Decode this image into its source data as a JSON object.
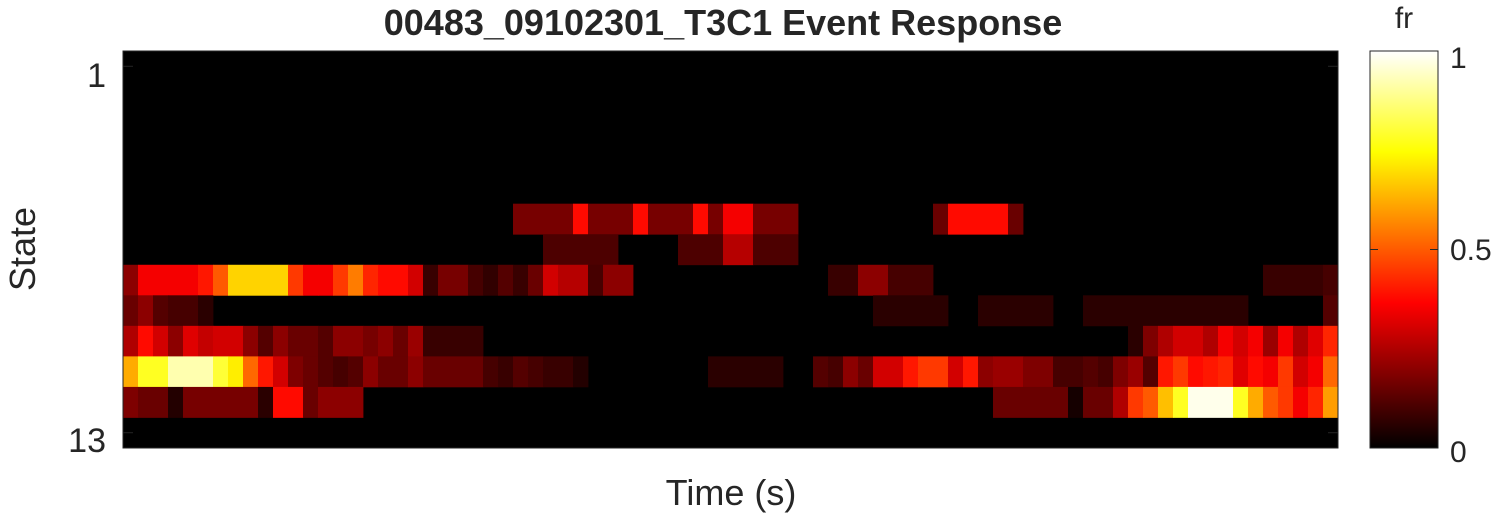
{
  "chart_data": {
    "type": "heatmap",
    "title": "00483_09102301_T3C1 Event Response",
    "xlabel": "Time (s)",
    "ylabel": "State",
    "ytick_labels": [
      "1",
      "13"
    ],
    "yticks": [
      1,
      13
    ],
    "n_rows": 13,
    "n_cols": 81,
    "colormap": "hot",
    "colorbar": {
      "label": "fr",
      "range": [
        0,
        1
      ],
      "ticks": [
        0,
        0.5,
        1
      ],
      "tick_labels": [
        "0",
        "0.5",
        "1"
      ]
    },
    "rows": [
      {
        "state": 1,
        "segments": []
      },
      {
        "state": 2,
        "segments": []
      },
      {
        "state": 3,
        "segments": []
      },
      {
        "state": 4,
        "segments": []
      },
      {
        "state": 5,
        "segments": []
      },
      {
        "state": 6,
        "segments": [
          [
            26,
            29,
            0.17
          ],
          [
            30,
            30,
            0.38
          ],
          [
            31,
            33,
            0.17
          ],
          [
            34,
            34,
            0.38
          ],
          [
            35,
            37,
            0.17
          ],
          [
            38,
            38,
            0.38
          ],
          [
            39,
            39,
            0.17
          ],
          [
            40,
            41,
            0.35
          ],
          [
            42,
            44,
            0.17
          ],
          [
            54,
            54,
            0.15
          ],
          [
            55,
            58,
            0.38
          ],
          [
            59,
            59,
            0.15
          ]
        ]
      },
      {
        "state": 7,
        "segments": [
          [
            28,
            32,
            0.11
          ],
          [
            37,
            39,
            0.11
          ],
          [
            40,
            41,
            0.26
          ],
          [
            42,
            44,
            0.11
          ]
        ]
      },
      {
        "state": 8,
        "segments": [
          [
            0,
            0,
            0.2
          ],
          [
            1,
            4,
            0.35
          ],
          [
            5,
            5,
            0.4
          ],
          [
            6,
            6,
            0.5
          ],
          [
            7,
            10,
            0.68
          ],
          [
            11,
            11,
            0.45
          ],
          [
            12,
            12,
            0.35
          ],
          [
            13,
            13,
            0.35
          ],
          [
            14,
            14,
            0.45
          ],
          [
            15,
            15,
            0.55
          ],
          [
            16,
            16,
            0.42
          ],
          [
            17,
            18,
            0.38
          ],
          [
            19,
            19,
            0.3
          ],
          [
            20,
            20,
            0.08
          ],
          [
            21,
            22,
            0.17
          ],
          [
            23,
            23,
            0.1
          ],
          [
            24,
            24,
            0.07
          ],
          [
            25,
            25,
            0.12
          ],
          [
            26,
            26,
            0.08
          ],
          [
            27,
            27,
            0.15
          ],
          [
            28,
            28,
            0.3
          ],
          [
            29,
            30,
            0.26
          ],
          [
            31,
            31,
            0.1
          ],
          [
            32,
            33,
            0.2
          ],
          [
            47,
            48,
            0.08
          ],
          [
            49,
            50,
            0.2
          ],
          [
            51,
            53,
            0.1
          ],
          [
            76,
            79,
            0.08
          ],
          [
            80,
            80,
            0.1
          ]
        ]
      },
      {
        "state": 9,
        "segments": [
          [
            0,
            0,
            0.15
          ],
          [
            1,
            1,
            0.2
          ],
          [
            2,
            2,
            0.12
          ],
          [
            3,
            4,
            0.1
          ],
          [
            5,
            5,
            0.06
          ],
          [
            50,
            54,
            0.06
          ],
          [
            57,
            61,
            0.06
          ],
          [
            64,
            68,
            0.06
          ],
          [
            69,
            74,
            0.06
          ],
          [
            80,
            80,
            0.12
          ]
        ]
      },
      {
        "state": 10,
        "segments": [
          [
            0,
            0,
            0.25
          ],
          [
            1,
            1,
            0.38
          ],
          [
            2,
            2,
            0.3
          ],
          [
            3,
            3,
            0.2
          ],
          [
            4,
            4,
            0.32
          ],
          [
            5,
            5,
            0.28
          ],
          [
            6,
            6,
            0.3
          ],
          [
            7,
            7,
            0.3
          ],
          [
            8,
            8,
            0.2
          ],
          [
            9,
            9,
            0.12
          ],
          [
            10,
            10,
            0.2
          ],
          [
            11,
            12,
            0.15
          ],
          [
            13,
            13,
            0.12
          ],
          [
            14,
            15,
            0.2
          ],
          [
            16,
            16,
            0.17
          ],
          [
            17,
            17,
            0.2
          ],
          [
            18,
            18,
            0.15
          ],
          [
            19,
            19,
            0.22
          ],
          [
            20,
            23,
            0.08
          ],
          [
            67,
            67,
            0.06
          ],
          [
            68,
            68,
            0.18
          ],
          [
            69,
            69,
            0.25
          ],
          [
            70,
            71,
            0.3
          ],
          [
            72,
            72,
            0.25
          ],
          [
            73,
            73,
            0.35
          ],
          [
            74,
            74,
            0.3
          ],
          [
            75,
            75,
            0.35
          ],
          [
            76,
            76,
            0.22
          ],
          [
            77,
            77,
            0.35
          ],
          [
            78,
            78,
            0.25
          ],
          [
            79,
            79,
            0.32
          ],
          [
            80,
            80,
            0.42
          ]
        ]
      },
      {
        "state": 11,
        "segments": [
          [
            0,
            0,
            0.62
          ],
          [
            1,
            2,
            0.78
          ],
          [
            3,
            5,
            0.92
          ],
          [
            6,
            6,
            0.8
          ],
          [
            7,
            7,
            0.72
          ],
          [
            8,
            8,
            0.52
          ],
          [
            9,
            9,
            0.4
          ],
          [
            10,
            10,
            0.3
          ],
          [
            11,
            11,
            0.18
          ],
          [
            12,
            12,
            0.15
          ],
          [
            13,
            13,
            0.12
          ],
          [
            14,
            14,
            0.1
          ],
          [
            15,
            15,
            0.12
          ],
          [
            16,
            16,
            0.2
          ],
          [
            17,
            18,
            0.15
          ],
          [
            19,
            19,
            0.2
          ],
          [
            20,
            23,
            0.15
          ],
          [
            24,
            24,
            0.1
          ],
          [
            25,
            25,
            0.08
          ],
          [
            26,
            26,
            0.12
          ],
          [
            27,
            27,
            0.1
          ],
          [
            28,
            29,
            0.08
          ],
          [
            30,
            30,
            0.05
          ],
          [
            39,
            43,
            0.06
          ],
          [
            46,
            46,
            0.12
          ],
          [
            47,
            47,
            0.1
          ],
          [
            48,
            48,
            0.2
          ],
          [
            49,
            49,
            0.15
          ],
          [
            50,
            51,
            0.3
          ],
          [
            52,
            52,
            0.4
          ],
          [
            53,
            54,
            0.45
          ],
          [
            55,
            55,
            0.3
          ],
          [
            56,
            56,
            0.4
          ],
          [
            57,
            57,
            0.2
          ],
          [
            58,
            59,
            0.22
          ],
          [
            60,
            61,
            0.18
          ],
          [
            62,
            63,
            0.1
          ],
          [
            64,
            64,
            0.12
          ],
          [
            65,
            65,
            0.1
          ],
          [
            66,
            66,
            0.18
          ],
          [
            67,
            67,
            0.22
          ],
          [
            68,
            68,
            0.12
          ],
          [
            69,
            69,
            0.4
          ],
          [
            70,
            70,
            0.45
          ],
          [
            71,
            71,
            0.38
          ],
          [
            72,
            72,
            0.4
          ],
          [
            73,
            73,
            0.42
          ],
          [
            74,
            74,
            0.32
          ],
          [
            75,
            75,
            0.38
          ],
          [
            76,
            76,
            0.35
          ],
          [
            77,
            77,
            0.45
          ],
          [
            78,
            78,
            0.3
          ],
          [
            79,
            79,
            0.35
          ],
          [
            80,
            80,
            0.52
          ]
        ]
      },
      {
        "state": 12,
        "segments": [
          [
            0,
            0,
            0.18
          ],
          [
            1,
            2,
            0.15
          ],
          [
            3,
            3,
            0.05
          ],
          [
            4,
            8,
            0.17
          ],
          [
            9,
            9,
            0.06
          ],
          [
            10,
            11,
            0.38
          ],
          [
            12,
            12,
            0.15
          ],
          [
            13,
            15,
            0.2
          ],
          [
            58,
            62,
            0.15
          ],
          [
            63,
            63,
            0.03
          ],
          [
            64,
            65,
            0.15
          ],
          [
            66,
            66,
            0.25
          ],
          [
            67,
            67,
            0.45
          ],
          [
            68,
            68,
            0.5
          ],
          [
            69,
            69,
            0.65
          ],
          [
            70,
            70,
            0.78
          ],
          [
            71,
            73,
            0.98
          ],
          [
            74,
            74,
            0.78
          ],
          [
            75,
            75,
            0.62
          ],
          [
            76,
            76,
            0.5
          ],
          [
            77,
            77,
            0.45
          ],
          [
            78,
            78,
            0.35
          ],
          [
            79,
            79,
            0.42
          ],
          [
            80,
            80,
            0.6
          ]
        ]
      },
      {
        "state": 13,
        "segments": []
      }
    ]
  }
}
